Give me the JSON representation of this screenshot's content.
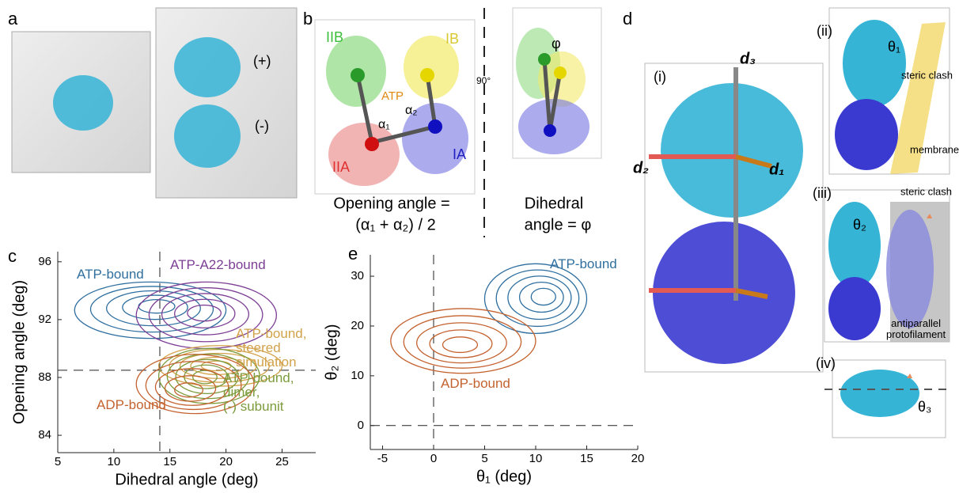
{
  "panels": {
    "a": {
      "label": "a",
      "plus": "(+)",
      "minus": "(-)"
    },
    "b": {
      "label": "b",
      "IIB": "IIB",
      "IB": "IB",
      "ATP": "ATP",
      "alpha1": "α₁",
      "alpha2": "α₂",
      "IIA": "IIA",
      "IA": "IA",
      "rotation": "90°",
      "phi": "φ",
      "opening_line1": "Opening angle =",
      "opening_line2": "(α₁ + α₂) / 2",
      "dihedral_line1": "Dihedral",
      "dihedral_line2": "angle = φ"
    },
    "d": {
      "label": "d",
      "i": "(i)",
      "d3": "d₃",
      "d2": "d₂",
      "d1": "d₁",
      "ii": "(ii)",
      "theta1": "θ₁",
      "steric_clash_ii": "steric clash",
      "membrane": "membrane",
      "iii": "(iii)",
      "theta2": "θ₂",
      "steric_clash_iii": "steric clash",
      "antiparallel": "antiparallel\nprotofilament",
      "iv": "(iv)",
      "theta3": "θ₃"
    }
  },
  "chart_data": [
    {
      "panel_label": "c",
      "type": "contour",
      "xlabel": "Dihedral angle (deg)",
      "ylabel": "Opening angle (deg)",
      "xlim": [
        5,
        28
      ],
      "xticks": [
        5,
        10,
        15,
        20,
        25
      ],
      "ylim": [
        82.8,
        96.7
      ],
      "yticks": [
        84,
        88,
        92,
        96
      ],
      "reference_lines": {
        "x": 14.1,
        "y": 88.5
      },
      "series": [
        {
          "name": "ATP-bound",
          "color": "#2f6f9f",
          "peak": [
            14,
            93
          ],
          "xrange": [
            6.5,
            20
          ],
          "yrange": [
            90.7,
            94.6
          ]
        },
        {
          "name": "ATP-A22-bound",
          "color": "#7d3f95",
          "peak": [
            18,
            92.5
          ],
          "xrange": [
            12,
            24.5
          ],
          "yrange": [
            90,
            94.6
          ]
        },
        {
          "name": "ATP-bound,\nsteered\nsimulation",
          "color": "#d2a24a",
          "peak": [
            19,
            88.8
          ],
          "xrange": [
            14,
            25
          ],
          "yrange": [
            87.4,
            90.2
          ]
        },
        {
          "name": "ATP-bound,\ndimer,\n(-) subunit",
          "color": "#7c9b3c",
          "peak": [
            18,
            88
          ],
          "xrange": [
            14,
            23
          ],
          "yrange": [
            86.2,
            90
          ]
        },
        {
          "name": "ADP-bound",
          "color": "#c4622f",
          "peak": [
            16.5,
            87
          ],
          "xrange": [
            12,
            22.5
          ],
          "yrange": [
            85.5,
            89.6
          ]
        }
      ]
    },
    {
      "panel_label": "e",
      "type": "contour",
      "xlabel": "θ₁ (deg)",
      "ylabel": "θ₂ (deg)",
      "xlim": [
        -6.2,
        20
      ],
      "xticks": [
        -5,
        0,
        5,
        10,
        15,
        20
      ],
      "ylim": [
        -4.8,
        34.3
      ],
      "yticks": [
        0,
        10,
        20,
        30
      ],
      "reference_lines": {
        "x": 0,
        "y": 0
      },
      "series": [
        {
          "name": "ATP-bound",
          "color": "#2f6f9f",
          "peak": [
            11,
            26
          ],
          "xrange": [
            5,
            15
          ],
          "yrange": [
            18.5,
            32.5
          ]
        },
        {
          "name": "ADP-bound",
          "color": "#c4622f",
          "peak": [
            2.5,
            16
          ],
          "xrange": [
            -4.2,
            10
          ],
          "yrange": [
            10.5,
            23.5
          ]
        }
      ]
    }
  ]
}
